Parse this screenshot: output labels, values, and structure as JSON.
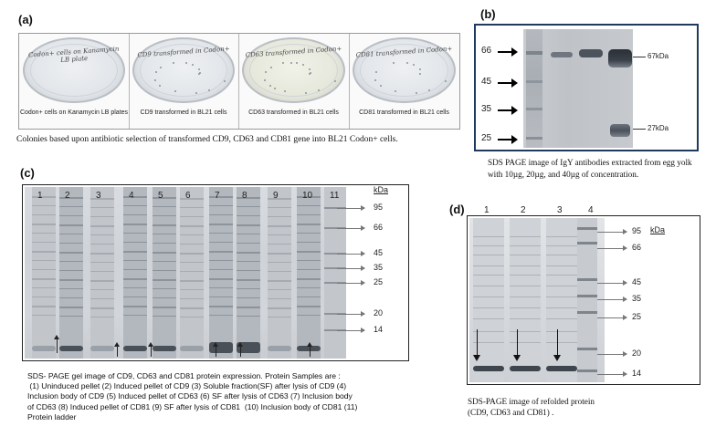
{
  "panel_a": {
    "letter": "(a)",
    "plates": [
      {
        "handwriting": "Codon+ cells on Kanamycin LB plate",
        "label": "Codon+ cells on Kanamycin LB plates",
        "colonies": 0
      },
      {
        "handwriting": "CD9 transformed in Codon+",
        "label": "CD9 transformed in BL21 cells",
        "colonies": 14
      },
      {
        "handwriting": "CD63 transformed in Codon+",
        "label": "CD63 transformed in BL21 cells",
        "colonies": 16
      },
      {
        "handwriting": "CD81 transformed in Codon+",
        "label": "CD81 transformed in BL21 cells",
        "colonies": 12
      }
    ],
    "caption": "Colonies based upon antibiotic selection of transformed CD9, CD63 and CD81 gene into BL21 Codon+ cells."
  },
  "panel_b": {
    "letter": "(b)",
    "ladder": [
      "66",
      "45",
      "35",
      "25"
    ],
    "bands": [
      "67kDa",
      "27kDa"
    ],
    "caption": "SDS PAGE image of IgY antibodies extracted from egg yolk with 10µg, 20µg, and 40µg of concentration."
  },
  "panel_c": {
    "letter": "(c)",
    "lanes": [
      "1",
      "2",
      "3",
      "4",
      "5",
      "6",
      "7",
      "8",
      "9",
      "10",
      "11"
    ],
    "unit": "kDa",
    "markers": [
      "95",
      "66",
      "45",
      "35",
      "25",
      "20",
      "14"
    ],
    "caption_lines": [
      "SDS- PAGE gel image of CD9, CD63 and CD81 protein expression. Protein Samples are :",
      " (1) Uninduced pellet (2) Induced pellet of CD9 (3) Soluble fraction(SF) after lysis of CD9 (4)",
      "Inclusion body of CD9 (5) Induced pellet of CD63 (6) SF after lysis of CD63 (7) Inclusion body",
      "of CD63 (8) Induced pellet of CD81 (9) SF after lysis of CD81  (10) Inclusion body of CD81 (11)",
      "Protein ladder"
    ]
  },
  "panel_d": {
    "letter": "(d)",
    "lanes": [
      "1",
      "2",
      "3",
      "4"
    ],
    "unit": "kDa",
    "markers": [
      "95",
      "66",
      "45",
      "35",
      "25",
      "20",
      "14"
    ],
    "caption_lines": [
      "SDS-PAGE image of refolded protein",
      "(CD9, CD63 and CD81) ."
    ]
  }
}
